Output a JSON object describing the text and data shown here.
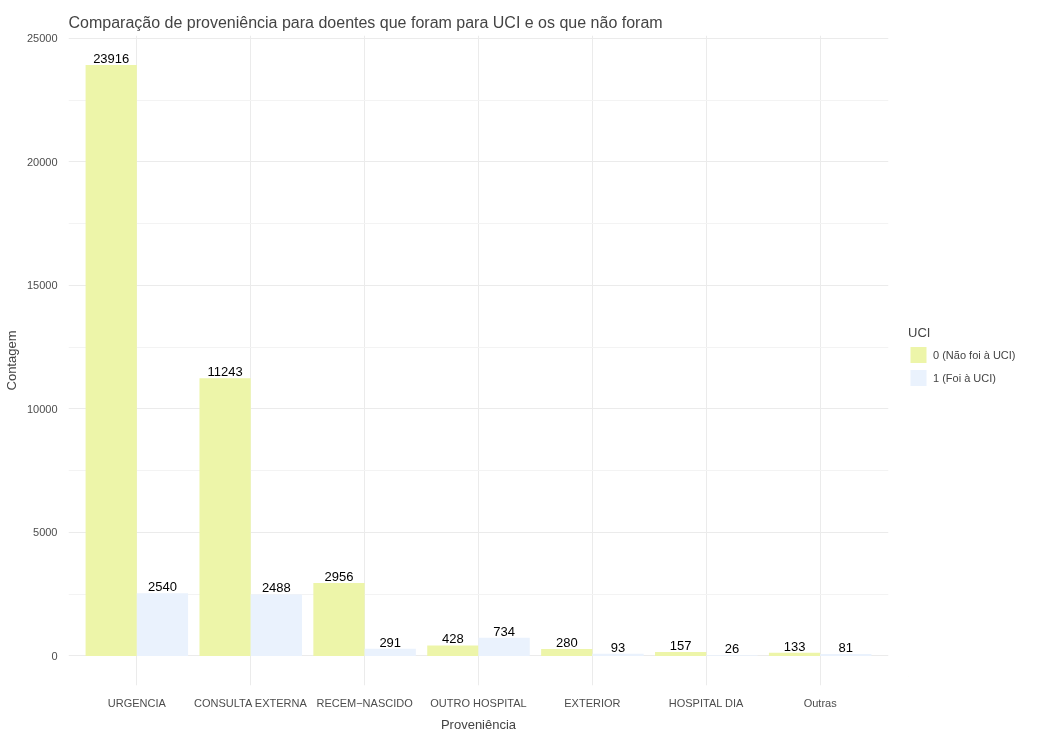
{
  "chart_data": {
    "type": "bar",
    "title": "Comparação de proveniência para doentes que foram para UCI e os que não foram",
    "xlabel": "Proveniência",
    "ylabel": "Contagem",
    "legend_title": "UCI",
    "categories": [
      "URGENCIA",
      "CONSULTA EXTERNA",
      "RECEM−NASCIDO",
      "OUTRO HOSPITAL",
      "EXTERIOR",
      "HOSPITAL DIA",
      "Outras"
    ],
    "series": [
      {
        "name": "0 (Não foi à UCI)",
        "color": "#edf5a9",
        "values": [
          23916,
          11243,
          2956,
          428,
          280,
          157,
          133
        ]
      },
      {
        "name": "1 (Foi à UCI)",
        "color": "#eaf2fd",
        "values": [
          2540,
          2488,
          291,
          734,
          93,
          26,
          81
        ]
      }
    ],
    "ylim": [
      -1196,
      25112
    ],
    "yticks": [
      0,
      5000,
      10000,
      15000,
      20000,
      25000
    ],
    "grid": true,
    "legend": "right",
    "data_labels": true
  }
}
